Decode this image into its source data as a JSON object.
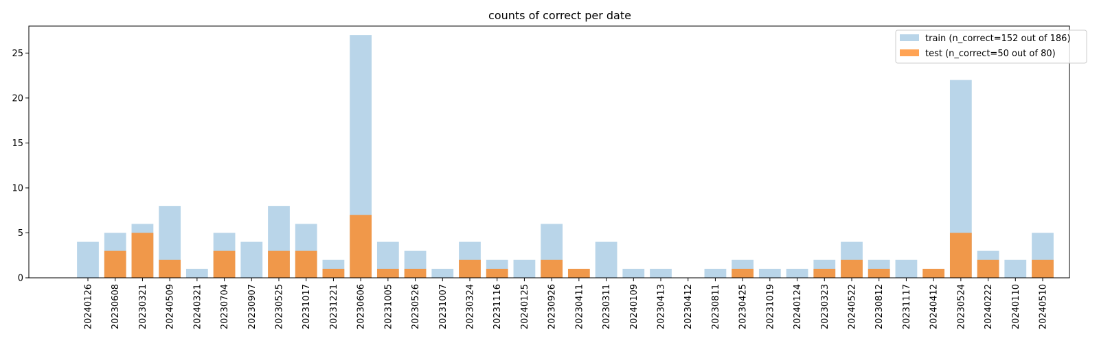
{
  "chart_data": {
    "type": "bar",
    "title": "counts of correct per date",
    "xlabel": "",
    "ylabel": "",
    "ylim": [
      0,
      28
    ],
    "yticks": [
      0,
      5,
      10,
      15,
      20,
      25
    ],
    "grid": false,
    "legend_position": "top-right",
    "categories": [
      "20240126",
      "20230608",
      "20230321",
      "20240509",
      "20240321",
      "20230704",
      "20230907",
      "20230525",
      "20231017",
      "20231221",
      "20230606",
      "20231005",
      "20230526",
      "20231007",
      "20230324",
      "20231116",
      "20240125",
      "20230926",
      "20230411",
      "20230311",
      "20240109",
      "20230413",
      "20230412",
      "20230811",
      "20230425",
      "20231019",
      "20240124",
      "20230323",
      "20240522",
      "20230812",
      "20231117",
      "20240412",
      "20230524",
      "20240222",
      "20240110",
      "20240510"
    ],
    "series": [
      {
        "name": "train (n_correct=152 out of 186)",
        "color": "#b9d5e9",
        "values": [
          4,
          5,
          6,
          8,
          1,
          5,
          4,
          8,
          6,
          2,
          27,
          4,
          3,
          1,
          4,
          2,
          2,
          6,
          0,
          4,
          1,
          1,
          0,
          1,
          2,
          1,
          1,
          2,
          4,
          2,
          2,
          0,
          22,
          3,
          2,
          5
        ]
      },
      {
        "name": "test (n_correct=50 out of 80)",
        "color": "#ffa354",
        "overlay_color": "#f0984a",
        "values": [
          0,
          3,
          5,
          2,
          0,
          3,
          0,
          3,
          3,
          1,
          7,
          1,
          1,
          0,
          2,
          1,
          0,
          2,
          1,
          0,
          0,
          0,
          0,
          0,
          1,
          0,
          0,
          1,
          2,
          1,
          0,
          1,
          5,
          2,
          0,
          2
        ]
      }
    ]
  }
}
